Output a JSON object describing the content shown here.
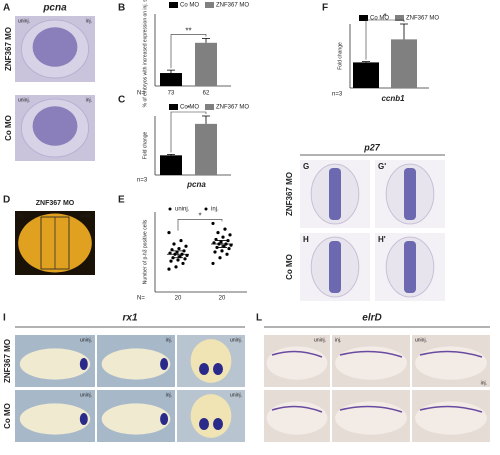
{
  "panels": {
    "A": {
      "letter": "A",
      "title": "pcna",
      "labels": [
        "uninj.",
        "inj."
      ],
      "rows": [
        "ZNF367 MO",
        "Co MO"
      ]
    },
    "D": {
      "letter": "D",
      "title": "ZNF367 MO",
      "labels": [
        "inj.",
        "uninj."
      ]
    },
    "G": {
      "title": "p27",
      "letters": [
        "G",
        "G'",
        "H",
        "H'"
      ],
      "rows": [
        "ZNF367 MO",
        "Co MO"
      ]
    },
    "I": {
      "letter": "I",
      "title": "rx1",
      "labels": [
        [
          "uninj.",
          "inj.",
          "uninj."
        ],
        [
          "uninj.",
          "inj.",
          "uninj."
        ]
      ],
      "rows": [
        "ZNF367 MO",
        "Co MO"
      ]
    },
    "L": {
      "letter": "L",
      "title": "elrD",
      "labels": [
        "uninj.",
        "inj.",
        "uninj.",
        "inj."
      ]
    }
  },
  "chart_data": [
    {
      "type": "bar",
      "panel": "B",
      "ylabel": "% of embryos with increased expression on inj. side",
      "ylim": [
        0,
        100
      ],
      "series": [
        {
          "name": "Co MO",
          "color": "#000000",
          "values": [
            18
          ],
          "errors": [
            4
          ]
        },
        {
          "name": "ZNF367 MO",
          "color": "#808080",
          "values": [
            60
          ],
          "errors": [
            6
          ]
        }
      ],
      "significance": "**",
      "n_label": "N=",
      "n": [
        73,
        62
      ]
    },
    {
      "type": "bar",
      "panel": "C",
      "ylabel": "Fold change",
      "xlabel": "pcna",
      "ylim": [
        0,
        3
      ],
      "series": [
        {
          "name": "Co MO",
          "color": "#000000",
          "values": [
            1
          ],
          "errors": [
            0.05
          ]
        },
        {
          "name": "ZNF367 MO",
          "color": "#808080",
          "values": [
            2.6
          ],
          "errors": [
            0.4
          ]
        }
      ],
      "significance": "*",
      "n_label": "n=3"
    },
    {
      "type": "scatter",
      "panel": "E",
      "ylabel": "Number of p-h3 positive cells",
      "ylim": [
        0,
        70
      ],
      "series": [
        {
          "name": "uninj.",
          "color": "#000000",
          "mean": 33,
          "error": 3,
          "values": [
            20,
            22,
            25,
            27,
            28,
            29,
            30,
            31,
            32,
            33,
            33,
            34,
            35,
            36,
            37,
            38,
            40,
            42,
            45,
            52
          ]
        },
        {
          "name": "inj.",
          "color": "#000000",
          "mean": 42,
          "error": 3,
          "values": [
            25,
            30,
            33,
            35,
            36,
            38,
            39,
            40,
            41,
            42,
            42,
            43,
            44,
            45,
            46,
            48,
            50,
            52,
            55,
            60
          ]
        }
      ],
      "significance": "*",
      "n_label": "N=",
      "n": [
        20,
        20
      ]
    },
    {
      "type": "bar",
      "panel": "F",
      "ylabel": "Fold change",
      "xlabel": "ccnb1",
      "ylim": [
        0,
        2.5
      ],
      "series": [
        {
          "name": "Co MO",
          "color": "#000000",
          "values": [
            1
          ],
          "errors": [
            0.03
          ]
        },
        {
          "name": "ZNF367 MO",
          "color": "#808080",
          "values": [
            1.9
          ],
          "errors": [
            0.6
          ]
        }
      ],
      "significance": "*",
      "n_label": "n=3"
    }
  ]
}
